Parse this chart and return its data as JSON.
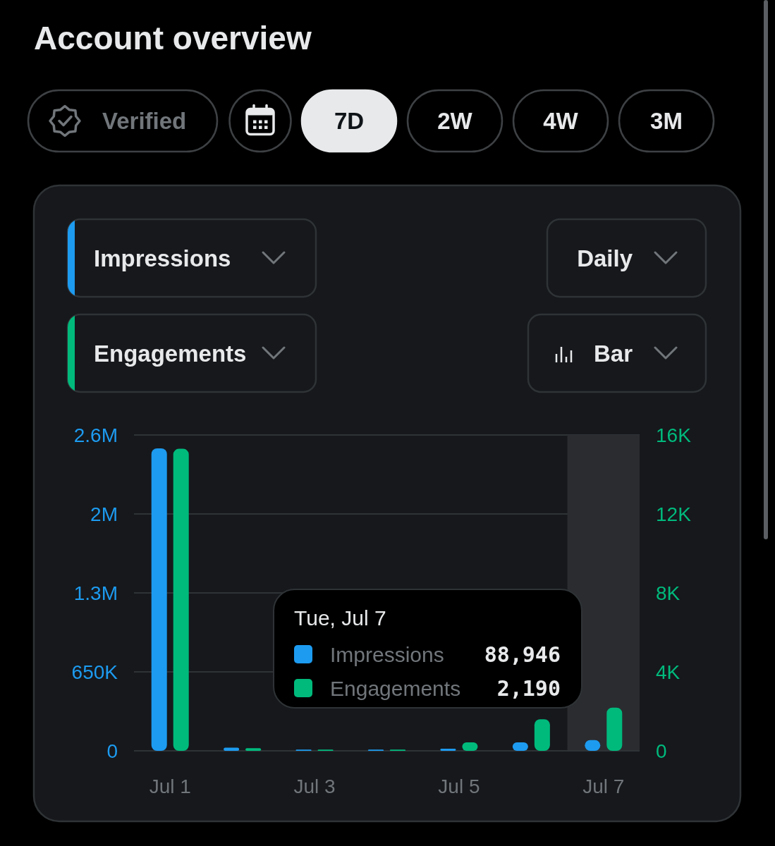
{
  "chart_data": {
    "type": "bar",
    "title": "Account overview",
    "categories": [
      "Jul 1",
      null,
      "Jul 3",
      null,
      "Jul 5",
      null,
      "Jul 7"
    ],
    "series": [
      {
        "name": "Impressions",
        "color": "#1d9bf0",
        "values": [
          2490000,
          26000,
          10000,
          10000,
          17000,
          70000,
          88946
        ]
      },
      {
        "name": "Engagements",
        "color": "#00ba7c",
        "axis": "y2",
        "values": [
          15300,
          130,
          60,
          60,
          430,
          1600,
          2190
        ]
      }
    ],
    "ylim": [
      0,
      2600000
    ],
    "yticks": [
      0,
      {
        "value": 650000,
        "label": "650K"
      },
      {
        "value": 1300000,
        "label": "1.3M"
      },
      {
        "value": 1950000,
        "label": "2M"
      },
      {
        "value": 2600000,
        "label": "2.6M"
      }
    ],
    "y2lim": [
      0,
      16000
    ],
    "y2ticks": [
      0,
      {
        "value": 4000,
        "label": "4K"
      },
      {
        "value": 8000,
        "label": "8K"
      },
      {
        "value": 12000,
        "label": "12K"
      },
      {
        "value": 16000,
        "label": "16K"
      }
    ],
    "grid": "y",
    "legend": "bottom",
    "bands": [
      {
        "axis": "x",
        "from": "Jul 7",
        "to": "Jul 7",
        "color": "#2b2c30"
      }
    ],
    "annotations": [
      "Verified",
      "7D",
      "2W",
      "4W",
      "3M",
      "Daily",
      "Bar",
      "Tue, Jul 7",
      "88,946",
      "2,190"
    ]
  }
}
